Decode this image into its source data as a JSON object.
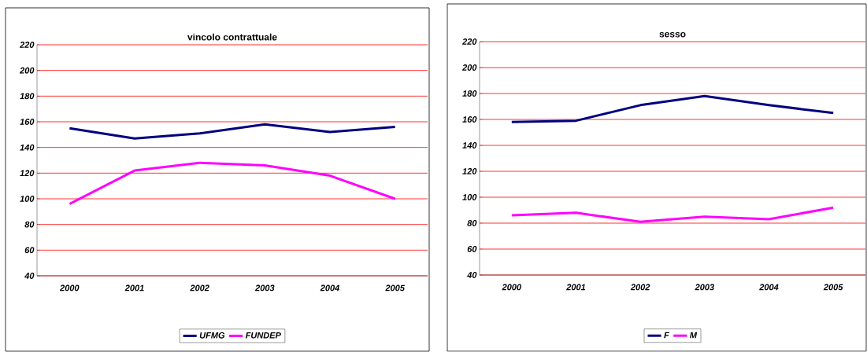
{
  "chart_data": [
    {
      "type": "line",
      "title": "vincolo contrattuale",
      "categories": [
        "2000",
        "2001",
        "2002",
        "2003",
        "2004",
        "2005"
      ],
      "series": [
        {
          "name": "UFMG",
          "color": "#000080",
          "values": [
            155,
            147,
            151,
            158,
            152,
            156
          ]
        },
        {
          "name": "FUNDEP",
          "color": "#ff00ff",
          "values": [
            96,
            122,
            128,
            126,
            118,
            100
          ]
        }
      ],
      "ylim": [
        40,
        220
      ],
      "yticks": [
        40,
        60,
        80,
        100,
        120,
        140,
        160,
        180,
        200,
        220
      ],
      "grid": "y",
      "legend": "bottom"
    },
    {
      "type": "line",
      "title": "sesso",
      "categories": [
        "2000",
        "2001",
        "2002",
        "2003",
        "2004",
        "2005"
      ],
      "series": [
        {
          "name": "F",
          "color": "#000080",
          "values": [
            158,
            159,
            171,
            178,
            171,
            165
          ]
        },
        {
          "name": "M",
          "color": "#ff00ff",
          "values": [
            86,
            88,
            81,
            85,
            83,
            92
          ]
        }
      ],
      "ylim": [
        40,
        220
      ],
      "yticks": [
        40,
        60,
        80,
        100,
        120,
        140,
        160,
        180,
        200,
        220
      ],
      "grid": "y",
      "legend": "bottom"
    }
  ]
}
